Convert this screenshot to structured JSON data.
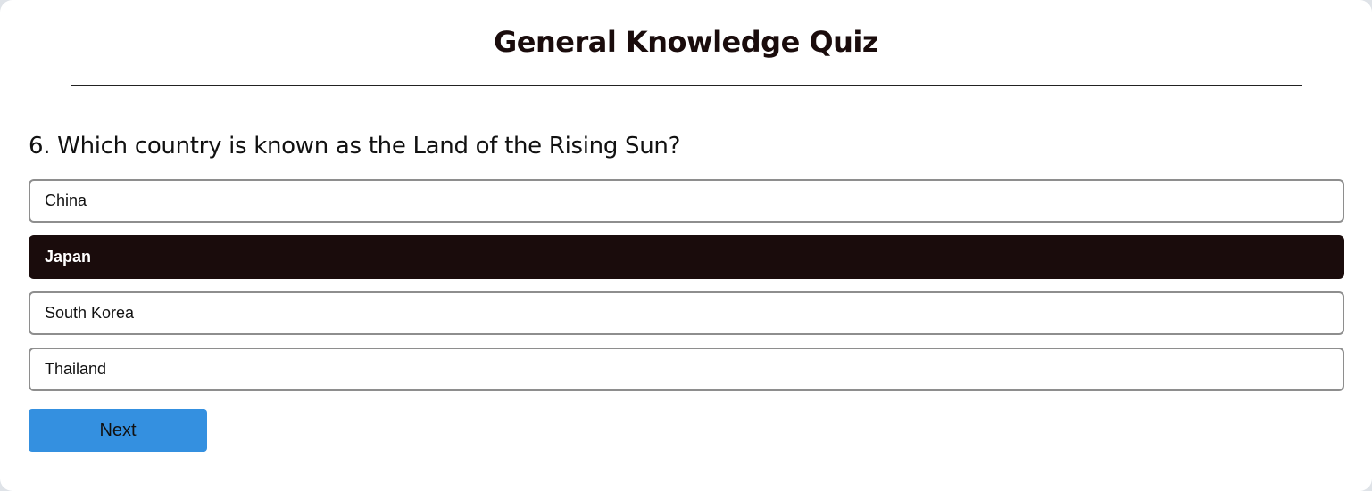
{
  "quiz": {
    "title": "General Knowledge Quiz",
    "question": "6. Which country is known as the Land of the Rising Sun?",
    "options": [
      {
        "label": "China",
        "selected": false
      },
      {
        "label": "Japan",
        "selected": true
      },
      {
        "label": "South Korea",
        "selected": false
      },
      {
        "label": "Thailand",
        "selected": false
      }
    ],
    "next_label": "Next"
  },
  "colors": {
    "selected_bg": "#1a0c0c",
    "next_button": "#3490e0",
    "option_border": "#8e8e8e"
  }
}
